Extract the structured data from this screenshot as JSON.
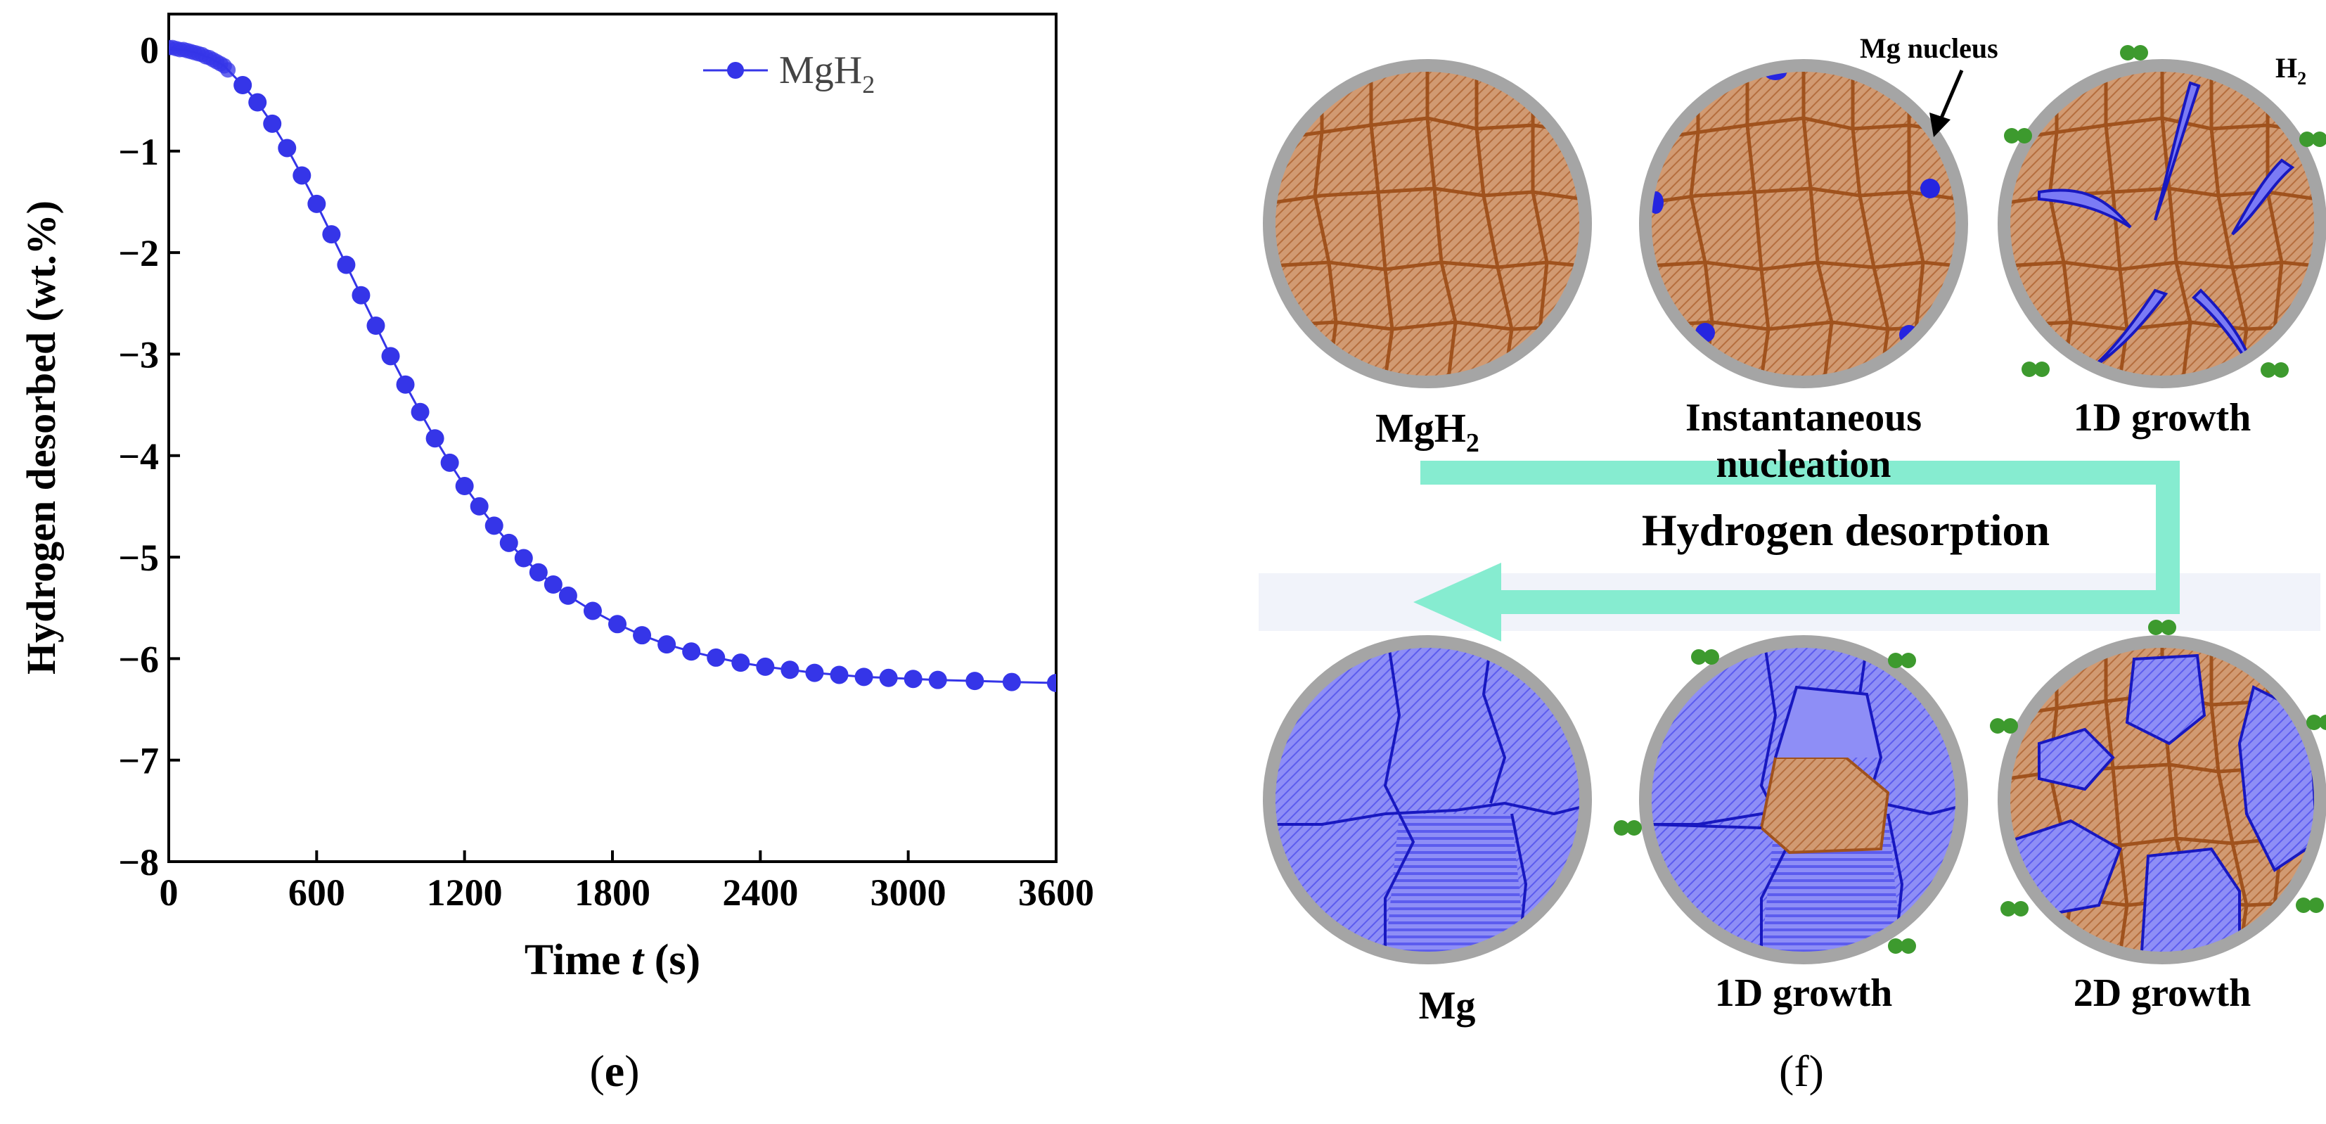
{
  "chart_data": {
    "type": "line",
    "xlabel_pre": "Time ",
    "xlabel_var": "t",
    "xlabel_post": " (s)",
    "ylabel": "Hydrogen desorbed (wt.%)",
    "xlim": [
      0,
      3600
    ],
    "ylim": [
      -8,
      0.35
    ],
    "xticks": [
      0,
      600,
      1200,
      1800,
      2400,
      3000,
      3600
    ],
    "xtick_labels": [
      "0",
      "600",
      "1200",
      "1800",
      "2400",
      "3000",
      "3600"
    ],
    "yticks": [
      0,
      -1,
      -2,
      -3,
      -4,
      -5,
      -6,
      -7,
      -8
    ],
    "ytick_labels": [
      "0",
      "−1",
      "−2",
      "−3",
      "−4",
      "−5",
      "−6",
      "−7",
      "−8"
    ],
    "grid": false,
    "legend_position": "top-right",
    "series": [
      {
        "name_main": "MgH",
        "name_sub": "2",
        "color": "#3535e8",
        "x": [
          0,
          15,
          30,
          45,
          60,
          75,
          90,
          105,
          120,
          135,
          150,
          165,
          180,
          195,
          210,
          225,
          240,
          300,
          360,
          420,
          480,
          540,
          600,
          660,
          720,
          780,
          840,
          900,
          960,
          1020,
          1080,
          1140,
          1200,
          1260,
          1320,
          1380,
          1440,
          1500,
          1560,
          1620,
          1720,
          1820,
          1920,
          2020,
          2120,
          2220,
          2320,
          2420,
          2520,
          2620,
          2720,
          2820,
          2920,
          3020,
          3120,
          3270,
          3420,
          3600
        ],
        "y": [
          0.02,
          0.02,
          0.01,
          0.0,
          0.0,
          -0.01,
          -0.02,
          -0.03,
          -0.04,
          -0.05,
          -0.07,
          -0.08,
          -0.1,
          -0.12,
          -0.14,
          -0.16,
          -0.2,
          -0.35,
          -0.52,
          -0.73,
          -0.97,
          -1.24,
          -1.52,
          -1.82,
          -2.12,
          -2.42,
          -2.72,
          -3.02,
          -3.3,
          -3.57,
          -3.83,
          -4.07,
          -4.3,
          -4.5,
          -4.69,
          -4.86,
          -5.01,
          -5.15,
          -5.27,
          -5.38,
          -5.53,
          -5.66,
          -5.77,
          -5.86,
          -5.93,
          -5.99,
          -6.04,
          -6.08,
          -6.11,
          -6.14,
          -6.16,
          -6.18,
          -6.19,
          -6.2,
          -6.21,
          -6.22,
          -6.23,
          -6.24
        ]
      }
    ]
  },
  "diagram": {
    "top_labels": {
      "mgh2_main": "MgH",
      "mgh2_sub": "2",
      "nucleation_line1": "Instantaneous",
      "nucleation_line2": "nucleation",
      "growth_1d_top": "1D growth"
    },
    "annotations": {
      "mg_nucleus": "Mg nucleus",
      "h2_main": "H",
      "h2_sub": "2"
    },
    "arrow_label": "Hydrogen desorption",
    "bottom_labels": {
      "mg": "Mg",
      "growth_1d_bottom": "1D growth",
      "growth_2d": "2D growth"
    },
    "colors": {
      "mgh2_phase": "#c8845a",
      "grain_boundary": "#a0521d",
      "mg_phase": "#6f6ff2",
      "mg_boundary": "#1818c0",
      "shell": "#a5a5a5",
      "h2_molecule": "#3d9a2e",
      "arrow": "#86ecd0"
    }
  },
  "panel_labels": {
    "left": "e",
    "right": "f"
  }
}
